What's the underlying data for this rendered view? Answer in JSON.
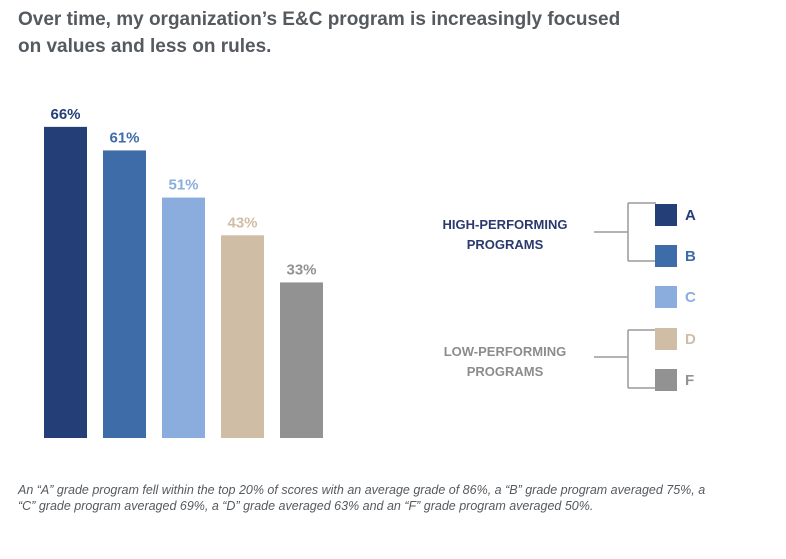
{
  "title_lines": [
    "Over time, my organization’s E&C program is increasingly focused",
    "on values and less on rules."
  ],
  "chart_data": {
    "type": "bar",
    "categories": [
      "A",
      "B",
      "C",
      "D",
      "F"
    ],
    "values": [
      66,
      61,
      51,
      43,
      33
    ],
    "data_labels": [
      "66%",
      "61%",
      "51%",
      "43%",
      "33%"
    ],
    "colors": [
      "#243f77",
      "#3d6ca8",
      "#8aaddd",
      "#cfbea5",
      "#929292"
    ],
    "label_colors": [
      "#243f77",
      "#3d6ca8",
      "#8aaddd",
      "#cfbea5",
      "#929292"
    ],
    "ylim": [
      0,
      70
    ]
  },
  "legend": {
    "high_label": [
      "HIGH-PERFORMING",
      "PROGRAMS"
    ],
    "low_label": [
      "LOW-PERFORMING",
      "PROGRAMS"
    ],
    "items": [
      {
        "letter": "A",
        "color": "#243f77",
        "text_color": "#243f77"
      },
      {
        "letter": "B",
        "color": "#3d6ca8",
        "text_color": "#3d6ca8"
      },
      {
        "letter": "C",
        "color": "#8aaddd",
        "text_color": "#8aaddd"
      },
      {
        "letter": "D",
        "color": "#cfbea5",
        "text_color": "#cfbea5"
      },
      {
        "letter": "F",
        "color": "#929292",
        "text_color": "#929292"
      }
    ]
  },
  "footnote": "An “A” grade program fell within the top 20% of scores with an average grade of 86%, a “B” grade program averaged 75%, a “C” grade program averaged 69%, a “D” grade averaged 63% and an “F” grade program averaged 50%."
}
